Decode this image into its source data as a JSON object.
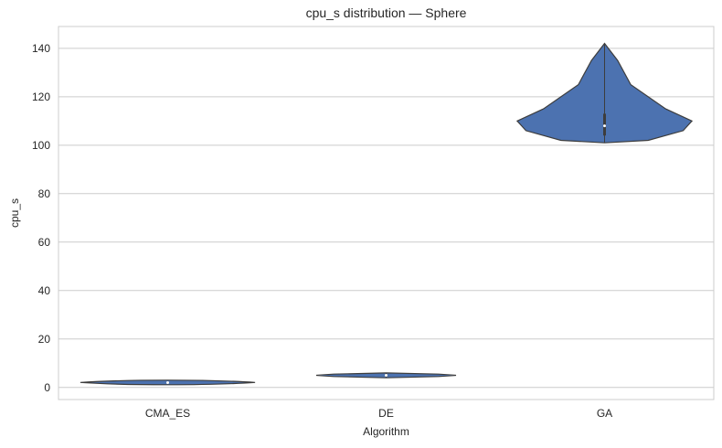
{
  "chart_data": {
    "type": "violin",
    "title": "cpu_s distribution — Sphere",
    "xlabel": "Algorithm",
    "ylabel": "cpu_s",
    "categories": [
      "CMA_ES",
      "DE",
      "GA"
    ],
    "ylim": [
      -5,
      149
    ],
    "yticks": [
      0,
      20,
      40,
      60,
      80,
      100,
      120,
      140
    ],
    "grid": true,
    "series": [
      {
        "category": "CMA_ES",
        "min": 1.6,
        "q1": 1.9,
        "median": 2.0,
        "q3": 2.1,
        "max": 2.5,
        "color": "#4c72b0",
        "profile": [
          [
            1.6,
            0.0
          ],
          [
            1.8,
            0.9
          ],
          [
            2.0,
            1.0
          ],
          [
            2.2,
            0.9
          ],
          [
            2.5,
            0.0
          ]
        ]
      },
      {
        "category": "DE",
        "min": 4.0,
        "q1": 4.6,
        "median": 5.0,
        "q3": 5.4,
        "max": 6.0,
        "color": "#4c72b0",
        "profile": [
          [
            4.0,
            0.0
          ],
          [
            4.5,
            0.6
          ],
          [
            5.0,
            0.8
          ],
          [
            5.5,
            0.6
          ],
          [
            6.0,
            0.0
          ]
        ]
      },
      {
        "category": "GA",
        "min": 101,
        "q1": 104,
        "median": 108,
        "q3": 113,
        "max": 142,
        "color": "#4c72b0",
        "profile": [
          [
            101,
            0.0
          ],
          [
            102,
            0.5
          ],
          [
            106,
            0.9
          ],
          [
            110,
            1.0
          ],
          [
            115,
            0.7
          ],
          [
            125,
            0.3
          ],
          [
            135,
            0.15
          ],
          [
            142,
            0.0
          ]
        ]
      }
    ]
  },
  "colors": {
    "violin_fill": "#4c72b0",
    "violin_edge": "#3d3d3d",
    "grid": "#cccccc",
    "spine": "#cccccc",
    "text": "#262626"
  }
}
